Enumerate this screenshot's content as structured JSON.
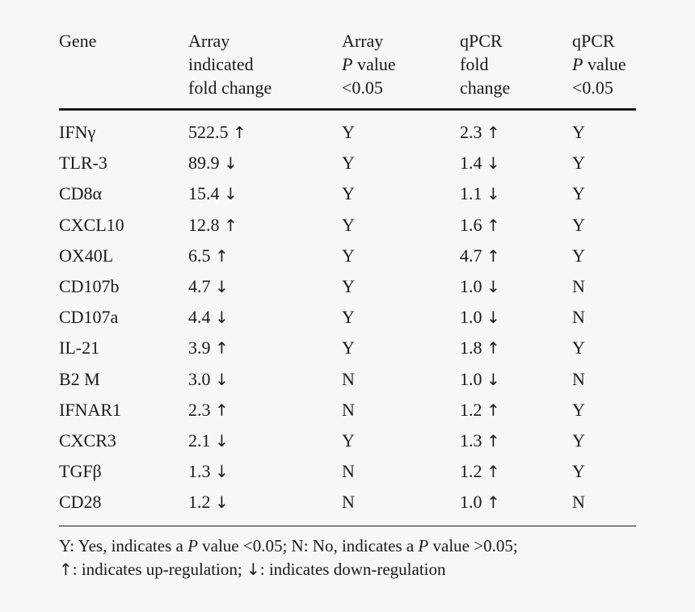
{
  "header": {
    "gene": [
      "Gene"
    ],
    "array_fold": [
      "Array",
      "indicated",
      "fold change"
    ],
    "array_p": [
      "Array",
      "P value",
      "<0.05"
    ],
    "qpcr_fold": [
      "qPCR",
      "fold",
      "change"
    ],
    "qpcr_p": [
      "qPCR",
      "P value",
      "<0.05"
    ]
  },
  "rows": [
    {
      "gene": "IFNγ",
      "array_fold": "522.5",
      "array_dir": "↑",
      "array_p": "Y",
      "qpcr_fold": "2.3",
      "qpcr_dir": "↑",
      "qpcr_p": "Y"
    },
    {
      "gene": "TLR-3",
      "array_fold": "89.9",
      "array_dir": "↓",
      "array_p": "Y",
      "qpcr_fold": "1.4",
      "qpcr_dir": "↓",
      "qpcr_p": "Y"
    },
    {
      "gene": "CD8α",
      "array_fold": "15.4",
      "array_dir": "↓",
      "array_p": "Y",
      "qpcr_fold": "1.1",
      "qpcr_dir": "↓",
      "qpcr_p": "Y"
    },
    {
      "gene": "CXCL10",
      "array_fold": "12.8",
      "array_dir": "↑",
      "array_p": "Y",
      "qpcr_fold": "1.6",
      "qpcr_dir": "↑",
      "qpcr_p": "Y"
    },
    {
      "gene": "OX40L",
      "array_fold": "6.5",
      "array_dir": "↑",
      "array_p": "Y",
      "qpcr_fold": "4.7",
      "qpcr_dir": "↑",
      "qpcr_p": "Y"
    },
    {
      "gene": "CD107b",
      "array_fold": "4.7",
      "array_dir": "↓",
      "array_p": "Y",
      "qpcr_fold": "1.0",
      "qpcr_dir": "↓",
      "qpcr_p": "N"
    },
    {
      "gene": "CD107a",
      "array_fold": "4.4",
      "array_dir": "↓",
      "array_p": "Y",
      "qpcr_fold": "1.0",
      "qpcr_dir": "↓",
      "qpcr_p": "N"
    },
    {
      "gene": "IL-21",
      "array_fold": "3.9",
      "array_dir": "↑",
      "array_p": "Y",
      "qpcr_fold": "1.8",
      "qpcr_dir": "↑",
      "qpcr_p": "Y"
    },
    {
      "gene": "B2 M",
      "array_fold": "3.0",
      "array_dir": "↓",
      "array_p": "N",
      "qpcr_fold": "1.0",
      "qpcr_dir": "↓",
      "qpcr_p": "N"
    },
    {
      "gene": "IFNAR1",
      "array_fold": "2.3",
      "array_dir": "↑",
      "array_p": "N",
      "qpcr_fold": "1.2",
      "qpcr_dir": "↑",
      "qpcr_p": "Y"
    },
    {
      "gene": "CXCR3",
      "array_fold": "2.1",
      "array_dir": "↓",
      "array_p": "Y",
      "qpcr_fold": "1.3",
      "qpcr_dir": "↑",
      "qpcr_p": "Y"
    },
    {
      "gene": "TGFβ",
      "array_fold": "1.3",
      "array_dir": "↓",
      "array_p": "N",
      "qpcr_fold": "1.2",
      "qpcr_dir": "↑",
      "qpcr_p": "Y"
    },
    {
      "gene": "CD28",
      "array_fold": "1.2",
      "array_dir": "↓",
      "array_p": "N",
      "qpcr_fold": "1.0",
      "qpcr_dir": "↑",
      "qpcr_p": "N"
    }
  ],
  "footnote": {
    "line1_a": "Y: Yes, indicates a ",
    "line1_p1": "P",
    "line1_b": " value <0.05; N: No, indicates a ",
    "line1_p2": "P",
    "line1_c": " value >0.05;",
    "line2_up": "↑",
    "line2_a": ": indicates up-regulation; ",
    "line2_down": "↓",
    "line2_b": ": indicates down-regulation"
  }
}
